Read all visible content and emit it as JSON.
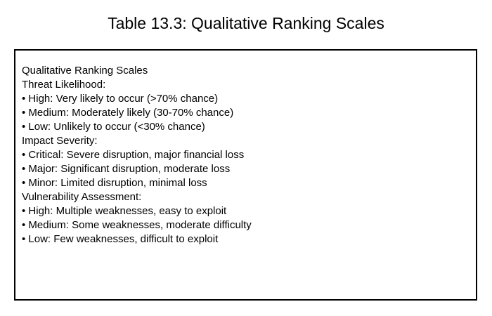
{
  "caption": "Table 13.3: Qualitative Ranking Scales",
  "table": {
    "heading": "Qualitative Ranking Scales",
    "sections": [
      {
        "title": "Threat Likelihood:",
        "items": [
          "• High: Very likely to occur (>70% chance)",
          "• Medium: Moderately likely (30-70% chance)",
          "• Low: Unlikely to occur (<30% chance)"
        ]
      },
      {
        "title": "Impact Severity:",
        "items": [
          "• Critical: Severe disruption, major financial loss",
          "• Major: Significant disruption, moderate loss",
          "• Minor: Limited disruption, minimal loss"
        ]
      },
      {
        "title": "Vulnerability Assessment:",
        "items": [
          "• High: Multiple weaknesses, easy to exploit",
          "• Medium: Some weaknesses, moderate difficulty",
          "• Low: Few weaknesses, difficult to exploit"
        ]
      }
    ]
  }
}
